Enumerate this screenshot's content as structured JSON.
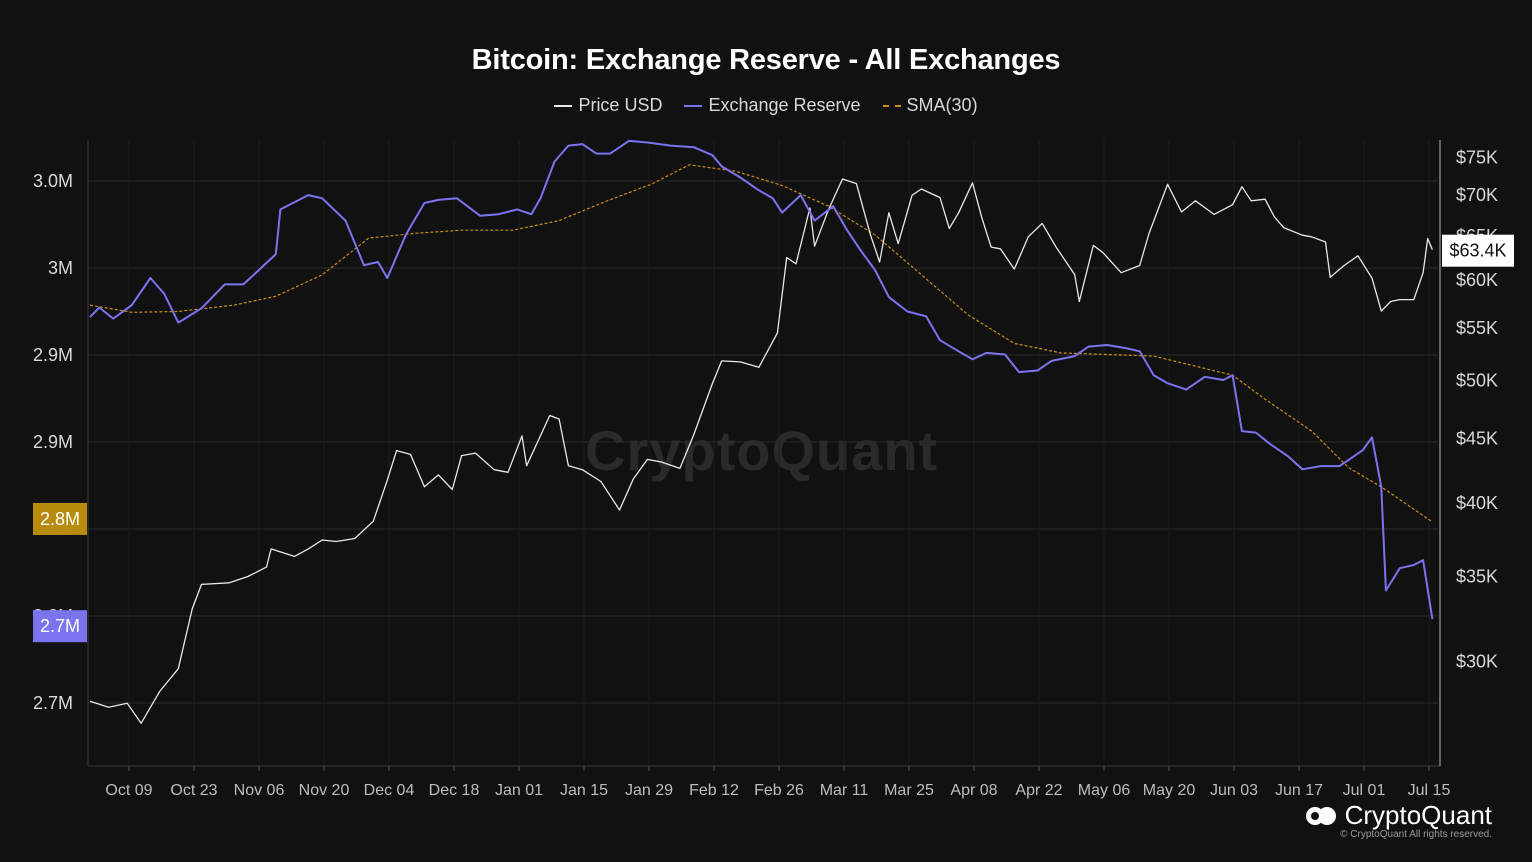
{
  "chart_data": {
    "type": "line",
    "title": "Bitcoin: Exchange Reserve - All Exchanges",
    "legend": {
      "placement": "top-center",
      "entries": [
        "Price USD",
        "Exchange Reserve",
        "SMA(30)"
      ]
    },
    "x_tick_labels": [
      "Oct 09",
      "Oct 23",
      "Nov 06",
      "Nov 20",
      "Dec 04",
      "Dec 18",
      "Jan 01",
      "Jan 15",
      "Jan 29",
      "Feb 12",
      "Feb 26",
      "Mar 11",
      "Mar 25",
      "Apr 08",
      "Apr 22",
      "May 06",
      "May 20",
      "Jun 03",
      "Jun 17",
      "Jul 01",
      "Jul 15"
    ],
    "x_range": [
      "2023-10-01",
      "2024-07-17"
    ],
    "y_left": {
      "ticks": [
        "2.7M",
        "2.8M",
        "2.8M",
        "2.9M",
        "2.9M",
        "3M",
        "3.0M"
      ],
      "range": [
        2.67,
        3.03
      ]
    },
    "y_right": {
      "ticks": [
        "$30K",
        "$35K",
        "$40K",
        "$45K",
        "$50K",
        "$55K",
        "$60K",
        "$65K",
        "$70K",
        "$75K"
      ],
      "scale": "log",
      "range": [
        26000,
        76000
      ]
    },
    "grid": true,
    "badges": {
      "sma_last": "2.8M",
      "reserve_last": "2.7M",
      "price_last": "$63.4K"
    },
    "colors": {
      "price": "#e8e8e8",
      "reserve": "#7b74ee",
      "sma": "#c98e12",
      "badge_sma": "#b88a0e",
      "badge_reserve": "#7b74ee",
      "badge_price": "#ffffff"
    },
    "series": [
      {
        "name": "Price USD",
        "axis": "right",
        "points": [
          [
            "2023-10-01",
            27900
          ],
          [
            "2023-10-05",
            27600
          ],
          [
            "2023-10-09",
            27800
          ],
          [
            "2023-10-12",
            26800
          ],
          [
            "2023-10-16",
            28400
          ],
          [
            "2023-10-20",
            29600
          ],
          [
            "2023-10-23",
            33000
          ],
          [
            "2023-10-25",
            34500
          ],
          [
            "2023-10-31",
            34600
          ],
          [
            "2023-11-04",
            35000
          ],
          [
            "2023-11-08",
            35600
          ],
          [
            "2023-11-09",
            36800
          ],
          [
            "2023-11-14",
            36300
          ],
          [
            "2023-11-17",
            36800
          ],
          [
            "2023-11-20",
            37400
          ],
          [
            "2023-11-23",
            37300
          ],
          [
            "2023-11-27",
            37500
          ],
          [
            "2023-12-01",
            38700
          ],
          [
            "2023-12-04",
            41700
          ],
          [
            "2023-12-06",
            44000
          ],
          [
            "2023-12-09",
            43700
          ],
          [
            "2023-12-12",
            41200
          ],
          [
            "2023-12-15",
            42100
          ],
          [
            "2023-12-18",
            41000
          ],
          [
            "2023-12-20",
            43600
          ],
          [
            "2023-12-23",
            43800
          ],
          [
            "2023-12-27",
            42500
          ],
          [
            "2023-12-30",
            42300
          ],
          [
            "2024-01-02",
            45200
          ],
          [
            "2024-01-03",
            42800
          ],
          [
            "2024-01-08",
            46900
          ],
          [
            "2024-01-10",
            46600
          ],
          [
            "2024-01-12",
            42800
          ],
          [
            "2024-01-15",
            42500
          ],
          [
            "2024-01-19",
            41600
          ],
          [
            "2024-01-23",
            39500
          ],
          [
            "2024-01-26",
            41800
          ],
          [
            "2024-01-29",
            43300
          ],
          [
            "2024-02-01",
            43100
          ],
          [
            "2024-02-05",
            42600
          ],
          [
            "2024-02-08",
            45300
          ],
          [
            "2024-02-12",
            49700
          ],
          [
            "2024-02-14",
            51800
          ],
          [
            "2024-02-18",
            51700
          ],
          [
            "2024-02-22",
            51200
          ],
          [
            "2024-02-26",
            54500
          ],
          [
            "2024-02-28",
            62500
          ],
          [
            "2024-03-01",
            61800
          ],
          [
            "2024-03-04",
            68400
          ],
          [
            "2024-03-05",
            63800
          ],
          [
            "2024-03-08",
            68200
          ],
          [
            "2024-03-11",
            72100
          ],
          [
            "2024-03-14",
            71500
          ],
          [
            "2024-03-17",
            65200
          ],
          [
            "2024-03-19",
            62000
          ],
          [
            "2024-03-21",
            67800
          ],
          [
            "2024-03-23",
            64100
          ],
          [
            "2024-03-26",
            70000
          ],
          [
            "2024-03-28",
            70800
          ],
          [
            "2024-04-01",
            69700
          ],
          [
            "2024-04-03",
            65900
          ],
          [
            "2024-04-05",
            67800
          ],
          [
            "2024-04-08",
            71600
          ],
          [
            "2024-04-10",
            67200
          ],
          [
            "2024-04-12",
            63700
          ],
          [
            "2024-04-14",
            63500
          ],
          [
            "2024-04-17",
            61200
          ],
          [
            "2024-04-20",
            64900
          ],
          [
            "2024-04-23",
            66500
          ],
          [
            "2024-04-26",
            63700
          ],
          [
            "2024-04-30",
            60600
          ],
          [
            "2024-05-01",
            57700
          ],
          [
            "2024-05-04",
            63900
          ],
          [
            "2024-05-06",
            63100
          ],
          [
            "2024-05-10",
            60800
          ],
          [
            "2024-05-14",
            61600
          ],
          [
            "2024-05-16",
            65300
          ],
          [
            "2024-05-20",
            71400
          ],
          [
            "2024-05-23",
            67900
          ],
          [
            "2024-05-26",
            69300
          ],
          [
            "2024-05-30",
            67600
          ],
          [
            "2024-06-03",
            68800
          ],
          [
            "2024-06-05",
            71100
          ],
          [
            "2024-06-07",
            69300
          ],
          [
            "2024-06-10",
            69500
          ],
          [
            "2024-06-12",
            67300
          ],
          [
            "2024-06-14",
            66000
          ],
          [
            "2024-06-18",
            65100
          ],
          [
            "2024-06-20",
            64900
          ],
          [
            "2024-06-23",
            64300
          ],
          [
            "2024-06-24",
            60300
          ],
          [
            "2024-06-27",
            61600
          ],
          [
            "2024-06-30",
            62700
          ],
          [
            "2024-07-03",
            60200
          ],
          [
            "2024-07-05",
            56700
          ],
          [
            "2024-07-07",
            57700
          ],
          [
            "2024-07-09",
            57900
          ],
          [
            "2024-07-12",
            57900
          ],
          [
            "2024-07-14",
            60800
          ],
          [
            "2024-07-15",
            64700
          ],
          [
            "2024-07-16",
            63400
          ]
        ]
      },
      {
        "name": "Exchange Reserve",
        "axis": "left",
        "points": [
          [
            "2023-10-01",
            2.9315
          ],
          [
            "2023-10-03",
            2.9375
          ],
          [
            "2023-10-06",
            2.9305
          ],
          [
            "2023-10-10",
            2.939
          ],
          [
            "2023-10-14",
            2.956
          ],
          [
            "2023-10-17",
            2.946
          ],
          [
            "2023-10-20",
            2.928
          ],
          [
            "2023-10-25",
            2.937
          ],
          [
            "2023-10-30",
            2.952
          ],
          [
            "2023-11-03",
            2.952
          ],
          [
            "2023-11-06",
            2.96
          ],
          [
            "2023-11-10",
            2.971
          ],
          [
            "2023-11-11",
            2.999
          ],
          [
            "2023-11-17",
            3.008
          ],
          [
            "2023-11-20",
            3.006
          ],
          [
            "2023-11-25",
            2.992
          ],
          [
            "2023-11-29",
            2.964
          ],
          [
            "2023-12-02",
            2.966
          ],
          [
            "2023-12-04",
            2.956
          ],
          [
            "2023-12-08",
            2.983
          ],
          [
            "2023-12-12",
            3.003
          ],
          [
            "2023-12-15",
            3.005
          ],
          [
            "2023-12-19",
            3.006
          ],
          [
            "2023-12-24",
            2.995
          ],
          [
            "2023-12-28",
            2.996
          ],
          [
            "2024-01-01",
            2.999
          ],
          [
            "2024-01-04",
            2.996
          ],
          [
            "2024-01-06",
            3.006
          ],
          [
            "2024-01-09",
            3.029
          ],
          [
            "2024-01-12",
            3.039
          ],
          [
            "2024-01-15",
            3.04
          ],
          [
            "2024-01-18",
            3.034
          ],
          [
            "2024-01-21",
            3.034
          ],
          [
            "2024-01-25",
            3.042
          ],
          [
            "2024-01-29",
            3.041
          ],
          [
            "2024-02-03",
            3.039
          ],
          [
            "2024-02-08",
            3.038
          ],
          [
            "2024-02-12",
            3.033
          ],
          [
            "2024-02-14",
            3.026
          ],
          [
            "2024-02-18",
            3.019
          ],
          [
            "2024-02-22",
            3.011
          ],
          [
            "2024-02-25",
            3.006
          ],
          [
            "2024-02-27",
            2.997
          ],
          [
            "2024-03-02",
            3.008
          ],
          [
            "2024-03-05",
            2.992
          ],
          [
            "2024-03-09",
            3.001
          ],
          [
            "2024-03-12",
            2.986
          ],
          [
            "2024-03-15",
            2.973
          ],
          [
            "2024-03-18",
            2.961
          ],
          [
            "2024-03-21",
            2.944
          ],
          [
            "2024-03-25",
            2.935
          ],
          [
            "2024-03-29",
            2.932
          ],
          [
            "2024-04-01",
            2.917
          ],
          [
            "2024-04-05",
            2.91
          ],
          [
            "2024-04-08",
            2.905
          ],
          [
            "2024-04-11",
            2.909
          ],
          [
            "2024-04-15",
            2.908
          ],
          [
            "2024-04-18",
            2.897
          ],
          [
            "2024-04-22",
            2.898
          ],
          [
            "2024-04-25",
            2.904
          ],
          [
            "2024-04-30",
            2.907
          ],
          [
            "2024-05-03",
            2.913
          ],
          [
            "2024-05-07",
            2.914
          ],
          [
            "2024-05-11",
            2.912
          ],
          [
            "2024-05-14",
            2.91
          ],
          [
            "2024-05-17",
            2.895
          ],
          [
            "2024-05-20",
            2.89
          ],
          [
            "2024-05-24",
            2.886
          ],
          [
            "2024-05-28",
            2.894
          ],
          [
            "2024-06-01",
            2.892
          ],
          [
            "2024-06-03",
            2.895
          ],
          [
            "2024-06-05",
            2.86
          ],
          [
            "2024-06-08",
            2.859
          ],
          [
            "2024-06-11",
            2.852
          ],
          [
            "2024-06-15",
            2.844
          ],
          [
            "2024-06-18",
            2.836
          ],
          [
            "2024-06-22",
            2.838
          ],
          [
            "2024-06-26",
            2.838
          ],
          [
            "2024-06-28",
            2.842
          ],
          [
            "2024-07-01",
            2.848
          ],
          [
            "2024-07-03",
            2.856
          ],
          [
            "2024-07-05",
            2.825
          ],
          [
            "2024-07-06",
            2.76
          ],
          [
            "2024-07-09",
            2.774
          ],
          [
            "2024-07-12",
            2.776
          ],
          [
            "2024-07-14",
            2.779
          ],
          [
            "2024-07-16",
            2.742
          ]
        ]
      },
      {
        "name": "SMA(30)",
        "axis": "left",
        "points": [
          [
            "2023-10-01",
            2.939
          ],
          [
            "2023-10-10",
            2.9345
          ],
          [
            "2023-10-20",
            2.935
          ],
          [
            "2023-11-01",
            2.939
          ],
          [
            "2023-11-10",
            2.9445
          ],
          [
            "2023-11-20",
            2.958
          ],
          [
            "2023-11-30",
            2.981
          ],
          [
            "2023-12-10",
            2.984
          ],
          [
            "2023-12-20",
            2.986
          ],
          [
            "2023-12-31",
            2.986
          ],
          [
            "2024-01-10",
            2.992
          ],
          [
            "2024-01-20",
            3.004
          ],
          [
            "2024-01-30",
            3.015
          ],
          [
            "2024-02-07",
            3.027
          ],
          [
            "2024-02-17",
            3.023
          ],
          [
            "2024-02-27",
            3.014
          ],
          [
            "2024-03-08",
            3.001
          ],
          [
            "2024-03-18",
            2.983
          ],
          [
            "2024-03-28",
            2.958
          ],
          [
            "2024-04-07",
            2.933
          ],
          [
            "2024-04-17",
            2.915
          ],
          [
            "2024-04-27",
            2.909
          ],
          [
            "2024-05-07",
            2.908
          ],
          [
            "2024-05-17",
            2.907
          ],
          [
            "2024-05-27",
            2.9
          ],
          [
            "2024-06-03",
            2.895
          ],
          [
            "2024-06-10",
            2.88
          ],
          [
            "2024-06-20",
            2.86
          ],
          [
            "2024-06-28",
            2.837
          ],
          [
            "2024-07-05",
            2.825
          ],
          [
            "2024-07-16",
            2.803
          ]
        ]
      }
    ]
  },
  "watermark": "CryptoQuant",
  "brand": {
    "name": "CryptoQuant",
    "copyright": "© CryptoQuant All rights reserved."
  }
}
